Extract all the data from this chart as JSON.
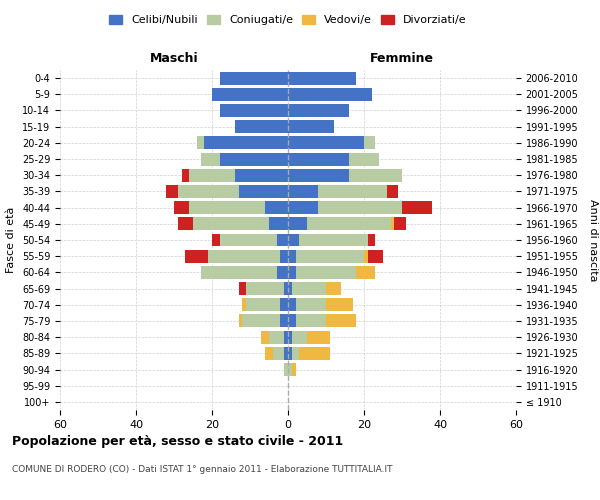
{
  "age_groups": [
    "100+",
    "95-99",
    "90-94",
    "85-89",
    "80-84",
    "75-79",
    "70-74",
    "65-69",
    "60-64",
    "55-59",
    "50-54",
    "45-49",
    "40-44",
    "35-39",
    "30-34",
    "25-29",
    "20-24",
    "15-19",
    "10-14",
    "5-9",
    "0-4"
  ],
  "birth_years": [
    "≤ 1910",
    "1911-1915",
    "1916-1920",
    "1921-1925",
    "1926-1930",
    "1931-1935",
    "1936-1940",
    "1941-1945",
    "1946-1950",
    "1951-1955",
    "1956-1960",
    "1961-1965",
    "1966-1970",
    "1971-1975",
    "1976-1980",
    "1981-1985",
    "1986-1990",
    "1991-1995",
    "1996-2000",
    "2001-2005",
    "2006-2010"
  ],
  "maschi": {
    "celibi": [
      0,
      0,
      0,
      1,
      1,
      2,
      2,
      1,
      3,
      2,
      3,
      5,
      6,
      13,
      14,
      18,
      22,
      14,
      18,
      20,
      18
    ],
    "coniugati": [
      0,
      0,
      1,
      3,
      4,
      10,
      9,
      10,
      20,
      19,
      15,
      20,
      20,
      16,
      12,
      5,
      2,
      0,
      0,
      0,
      0
    ],
    "vedovi": [
      0,
      0,
      0,
      2,
      2,
      1,
      1,
      0,
      0,
      0,
      0,
      0,
      0,
      0,
      0,
      0,
      0,
      0,
      0,
      0,
      0
    ],
    "divorziati": [
      0,
      0,
      0,
      0,
      0,
      0,
      0,
      2,
      0,
      6,
      2,
      4,
      4,
      3,
      2,
      0,
      0,
      0,
      0,
      0,
      0
    ]
  },
  "femmine": {
    "nubili": [
      0,
      0,
      0,
      1,
      1,
      2,
      2,
      1,
      2,
      2,
      3,
      5,
      8,
      8,
      16,
      16,
      20,
      12,
      16,
      22,
      18
    ],
    "coniugate": [
      0,
      0,
      1,
      2,
      4,
      8,
      8,
      9,
      16,
      18,
      18,
      22,
      22,
      18,
      14,
      8,
      3,
      0,
      0,
      0,
      0
    ],
    "vedove": [
      0,
      0,
      1,
      8,
      6,
      8,
      7,
      4,
      5,
      1,
      0,
      1,
      0,
      0,
      0,
      0,
      0,
      0,
      0,
      0,
      0
    ],
    "divorziate": [
      0,
      0,
      0,
      0,
      0,
      0,
      0,
      0,
      0,
      4,
      2,
      3,
      8,
      3,
      0,
      0,
      0,
      0,
      0,
      0,
      0
    ]
  },
  "colors": {
    "celibi": "#4472c4",
    "coniugati": "#b8cca4",
    "vedovi": "#f0b840",
    "divorziati": "#cc2222"
  },
  "xlim": 60,
  "title1": "Popolazione per età, sesso e stato civile - 2011",
  "title2": "COMUNE DI RODERO (CO) - Dati ISTAT 1° gennaio 2011 - Elaborazione TUTTITALIA.IT",
  "ylabel_left": "Fasce di età",
  "ylabel_right": "Anni di nascita",
  "xlabel_maschi": "Maschi",
  "xlabel_femmine": "Femmine",
  "legend_labels": [
    "Celibi/Nubili",
    "Coniugati/e",
    "Vedovi/e",
    "Divorziati/e"
  ],
  "bg_color": "#ffffff",
  "grid_color": "#cccccc"
}
